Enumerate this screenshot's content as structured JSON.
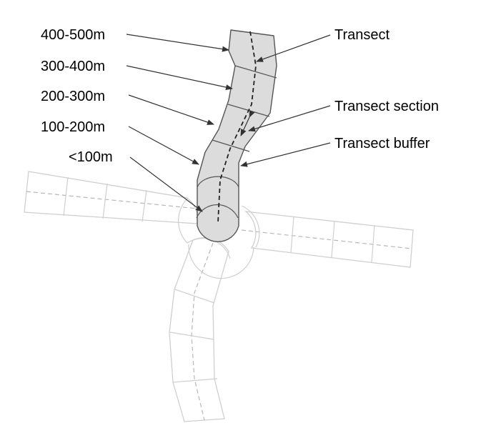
{
  "labels": {
    "band_400_500": "400-500m",
    "band_300_400": "300-400m",
    "band_200_300": "200-300m",
    "band_100_200": "100-200m",
    "band_lt_100": "<100m",
    "transect": "Transect",
    "transect_section": "Transect section",
    "transect_buffer": "Transect buffer"
  },
  "colors": {
    "buffer_fill": "#dcdcdc",
    "buffer_stroke": "#555555",
    "faint_stroke": "#cfcfcf",
    "transect_line": "#222222",
    "arrow": "#333333"
  }
}
